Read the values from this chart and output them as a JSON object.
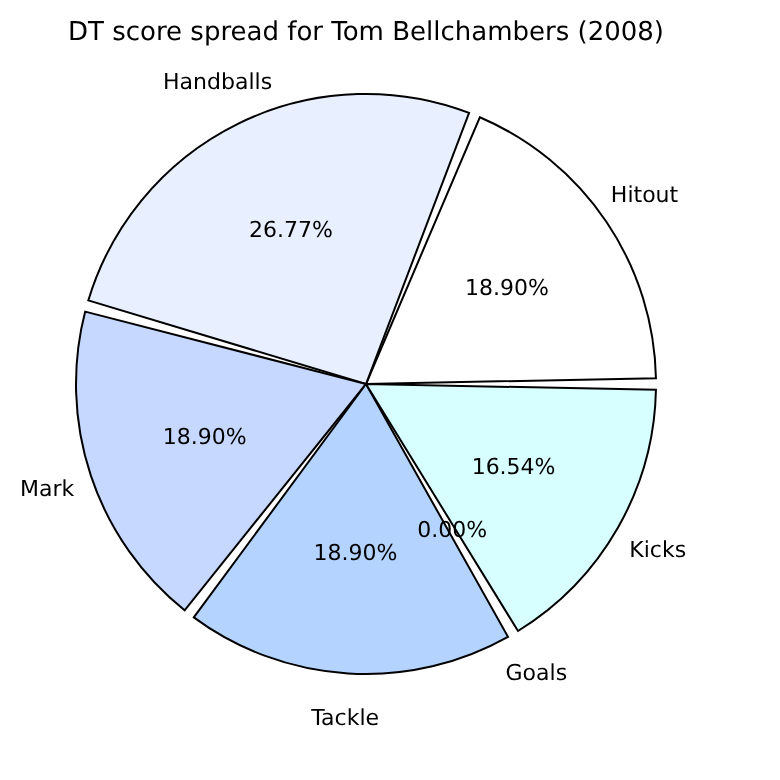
{
  "chart_data": {
    "type": "pie",
    "title": "DT score spread for Tom Bellchambers (2008)",
    "categories": [
      "Hitout",
      "Handballs",
      "Mark",
      "Tackle",
      "Goals",
      "Kicks"
    ],
    "values": [
      18.9,
      26.77,
      18.9,
      18.9,
      0.0,
      16.54
    ],
    "value_labels": [
      "18.90%",
      "26.77%",
      "18.90%",
      "18.90%",
      "0.00%",
      "16.54%"
    ],
    "colors": [
      "#ffffff",
      "#e8f0ff",
      "#c6d8ff",
      "#b4d4ff",
      "#a0a0a0",
      "#d8ffff"
    ],
    "legend": false
  }
}
